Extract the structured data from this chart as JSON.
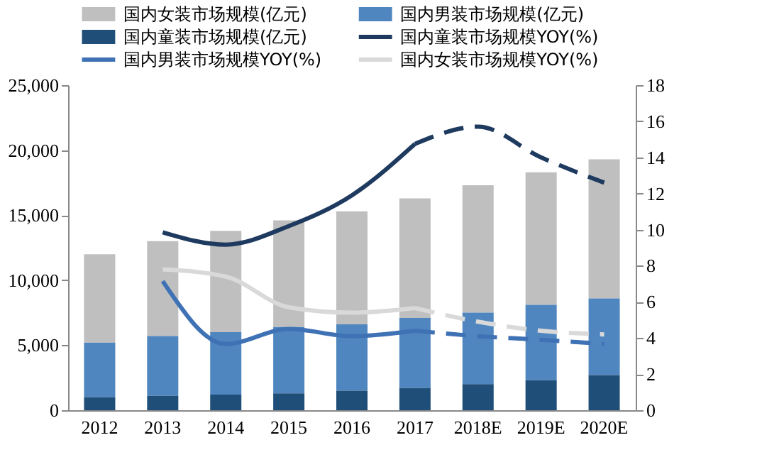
{
  "chart_data": {
    "type": "bar",
    "stacked": true,
    "legend": "top",
    "grid": false,
    "categories": [
      "2012",
      "2013",
      "2014",
      "2015",
      "2016",
      "2017",
      "2018E",
      "2019E",
      "2020E"
    ],
    "ylim": [
      0,
      25000
    ],
    "yticks": [
      {
        "value": 0,
        "label": "0"
      },
      {
        "value": 5000,
        "label": "5,000"
      },
      {
        "value": 10000,
        "label": "10,000"
      },
      {
        "value": 15000,
        "label": "15,000"
      },
      {
        "value": 20000,
        "label": "20,000"
      },
      {
        "value": 25000,
        "label": "25,000"
      }
    ],
    "y2lim": [
      0,
      18
    ],
    "y2ticks": [
      0,
      2,
      4,
      6,
      8,
      10,
      12,
      14,
      16,
      18
    ],
    "series": [
      {
        "name": "国内女装市场规模(亿元)",
        "color": "#bfbfbf",
        "values": [
          6800,
          7300,
          7800,
          8200,
          8700,
          9200,
          9800,
          10200,
          10700
        ]
      },
      {
        "name": "国内男装市场规模(亿元)",
        "color": "#4f86bf",
        "values": [
          4200,
          4600,
          4800,
          5100,
          5100,
          5400,
          5500,
          5800,
          5900
        ]
      },
      {
        "name": "国内童装市场规模(亿元)",
        "color": "#1f4e79",
        "values": [
          1000,
          1100,
          1200,
          1300,
          1500,
          1700,
          2000,
          2300,
          2700
        ]
      },
      {
        "name": "国内童装市场规模YOY(%)",
        "type": "line",
        "axis": "y2",
        "color": "#1f3a5f",
        "line_style": "solid",
        "values": [
          null,
          9.85,
          9.17,
          10.2,
          11.9,
          14.75,
          null,
          null,
          null
        ]
      },
      {
        "name": "国内男装市场规模YOY(%)",
        "type": "line",
        "axis": "y2",
        "color": "#3f72b5",
        "line_style": "solid",
        "values": [
          null,
          7.15,
          3.67,
          4.5,
          4.1,
          4.4,
          null,
          null,
          null
        ]
      },
      {
        "name": "国内女装市场规模YOY(%)",
        "type": "line",
        "axis": "y2",
        "color": "#d9d9d9",
        "line_style": "solid",
        "values": [
          null,
          7.8,
          7.4,
          5.7,
          5.4,
          5.66,
          null,
          null,
          null
        ]
      },
      {
        "type": "line",
        "axis": "y2",
        "color": "#1f3a5f",
        "line_style": "dashed",
        "values": [
          null,
          null,
          null,
          null,
          null,
          14.75,
          15.7,
          14.0,
          12.6
        ]
      },
      {
        "type": "line",
        "axis": "y2",
        "color": "#3f72b5",
        "line_style": "dashed",
        "values": [
          null,
          null,
          null,
          null,
          null,
          4.4,
          4.1,
          3.9,
          3.67
        ]
      },
      {
        "type": "line",
        "axis": "y2",
        "color": "#d9d9d9",
        "line_style": "dashed",
        "values": [
          null,
          null,
          null,
          null,
          null,
          5.66,
          4.9,
          4.4,
          4.2
        ]
      }
    ]
  }
}
